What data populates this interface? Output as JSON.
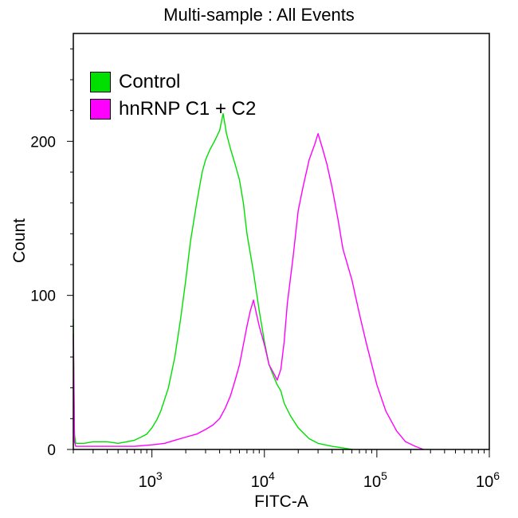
{
  "chart_data": {
    "type": "line",
    "title": "Multi-sample : All Events",
    "xlabel": "FITC-A",
    "ylabel": "Count",
    "x_scale": "log",
    "xlim": [
      200,
      1000000
    ],
    "ylim": [
      0,
      270
    ],
    "x_ticks": [
      {
        "value": 1000,
        "base": "10",
        "exp": "3"
      },
      {
        "value": 10000,
        "base": "10",
        "exp": "4"
      },
      {
        "value": 100000,
        "base": "10",
        "exp": "5"
      },
      {
        "value": 1000000,
        "base": "10",
        "exp": "6"
      }
    ],
    "y_ticks": [
      0,
      100,
      200
    ],
    "legend_position": "top-left",
    "series": [
      {
        "name": "Control",
        "color": "#00e000",
        "x": [
          200,
          205,
          210,
          250,
          300,
          400,
          500,
          600,
          700,
          800,
          900,
          1000,
          1100,
          1200,
          1400,
          1600,
          1800,
          2000,
          2200,
          2500,
          2800,
          3000,
          3300,
          3600,
          4000,
          4300,
          4600,
          5000,
          5500,
          6000,
          6500,
          7000,
          8000,
          9000,
          10000,
          11000,
          12000,
          13000,
          14000,
          15000,
          17000,
          20000,
          25000,
          30000,
          40000,
          50000,
          60000
        ],
        "y": [
          85,
          10,
          4,
          4,
          5,
          5,
          4,
          5,
          6,
          8,
          10,
          14,
          19,
          25,
          40,
          60,
          85,
          110,
          135,
          160,
          180,
          188,
          195,
          200,
          207,
          218,
          205,
          195,
          185,
          175,
          160,
          140,
          115,
          90,
          70,
          55,
          48,
          42,
          38,
          30,
          22,
          14,
          7,
          4,
          2,
          1,
          0
        ]
      },
      {
        "name": "hnRNP C1 + C2",
        "color": "#ff00ff",
        "x": [
          200,
          205,
          210,
          300,
          500,
          700,
          1000,
          1300,
          1600,
          2000,
          2500,
          3000,
          3500,
          4000,
          4500,
          5000,
          5500,
          6000,
          6500,
          7000,
          7500,
          8000,
          8500,
          9000,
          10000,
          11000,
          12000,
          13000,
          14000,
          15000,
          16000,
          18000,
          20000,
          22000,
          25000,
          28000,
          30000,
          33000,
          36000,
          40000,
          45000,
          50000,
          60000,
          70000,
          80000,
          100000,
          120000,
          150000,
          180000,
          220000,
          260000
        ],
        "y": [
          75,
          5,
          2,
          2,
          2,
          2,
          3,
          4,
          6,
          8,
          10,
          13,
          16,
          20,
          27,
          35,
          45,
          55,
          68,
          80,
          90,
          97,
          88,
          80,
          68,
          55,
          50,
          45,
          52,
          70,
          95,
          125,
          155,
          170,
          188,
          198,
          205,
          195,
          185,
          170,
          150,
          130,
          110,
          88,
          70,
          42,
          25,
          12,
          5,
          2,
          0
        ]
      }
    ]
  }
}
